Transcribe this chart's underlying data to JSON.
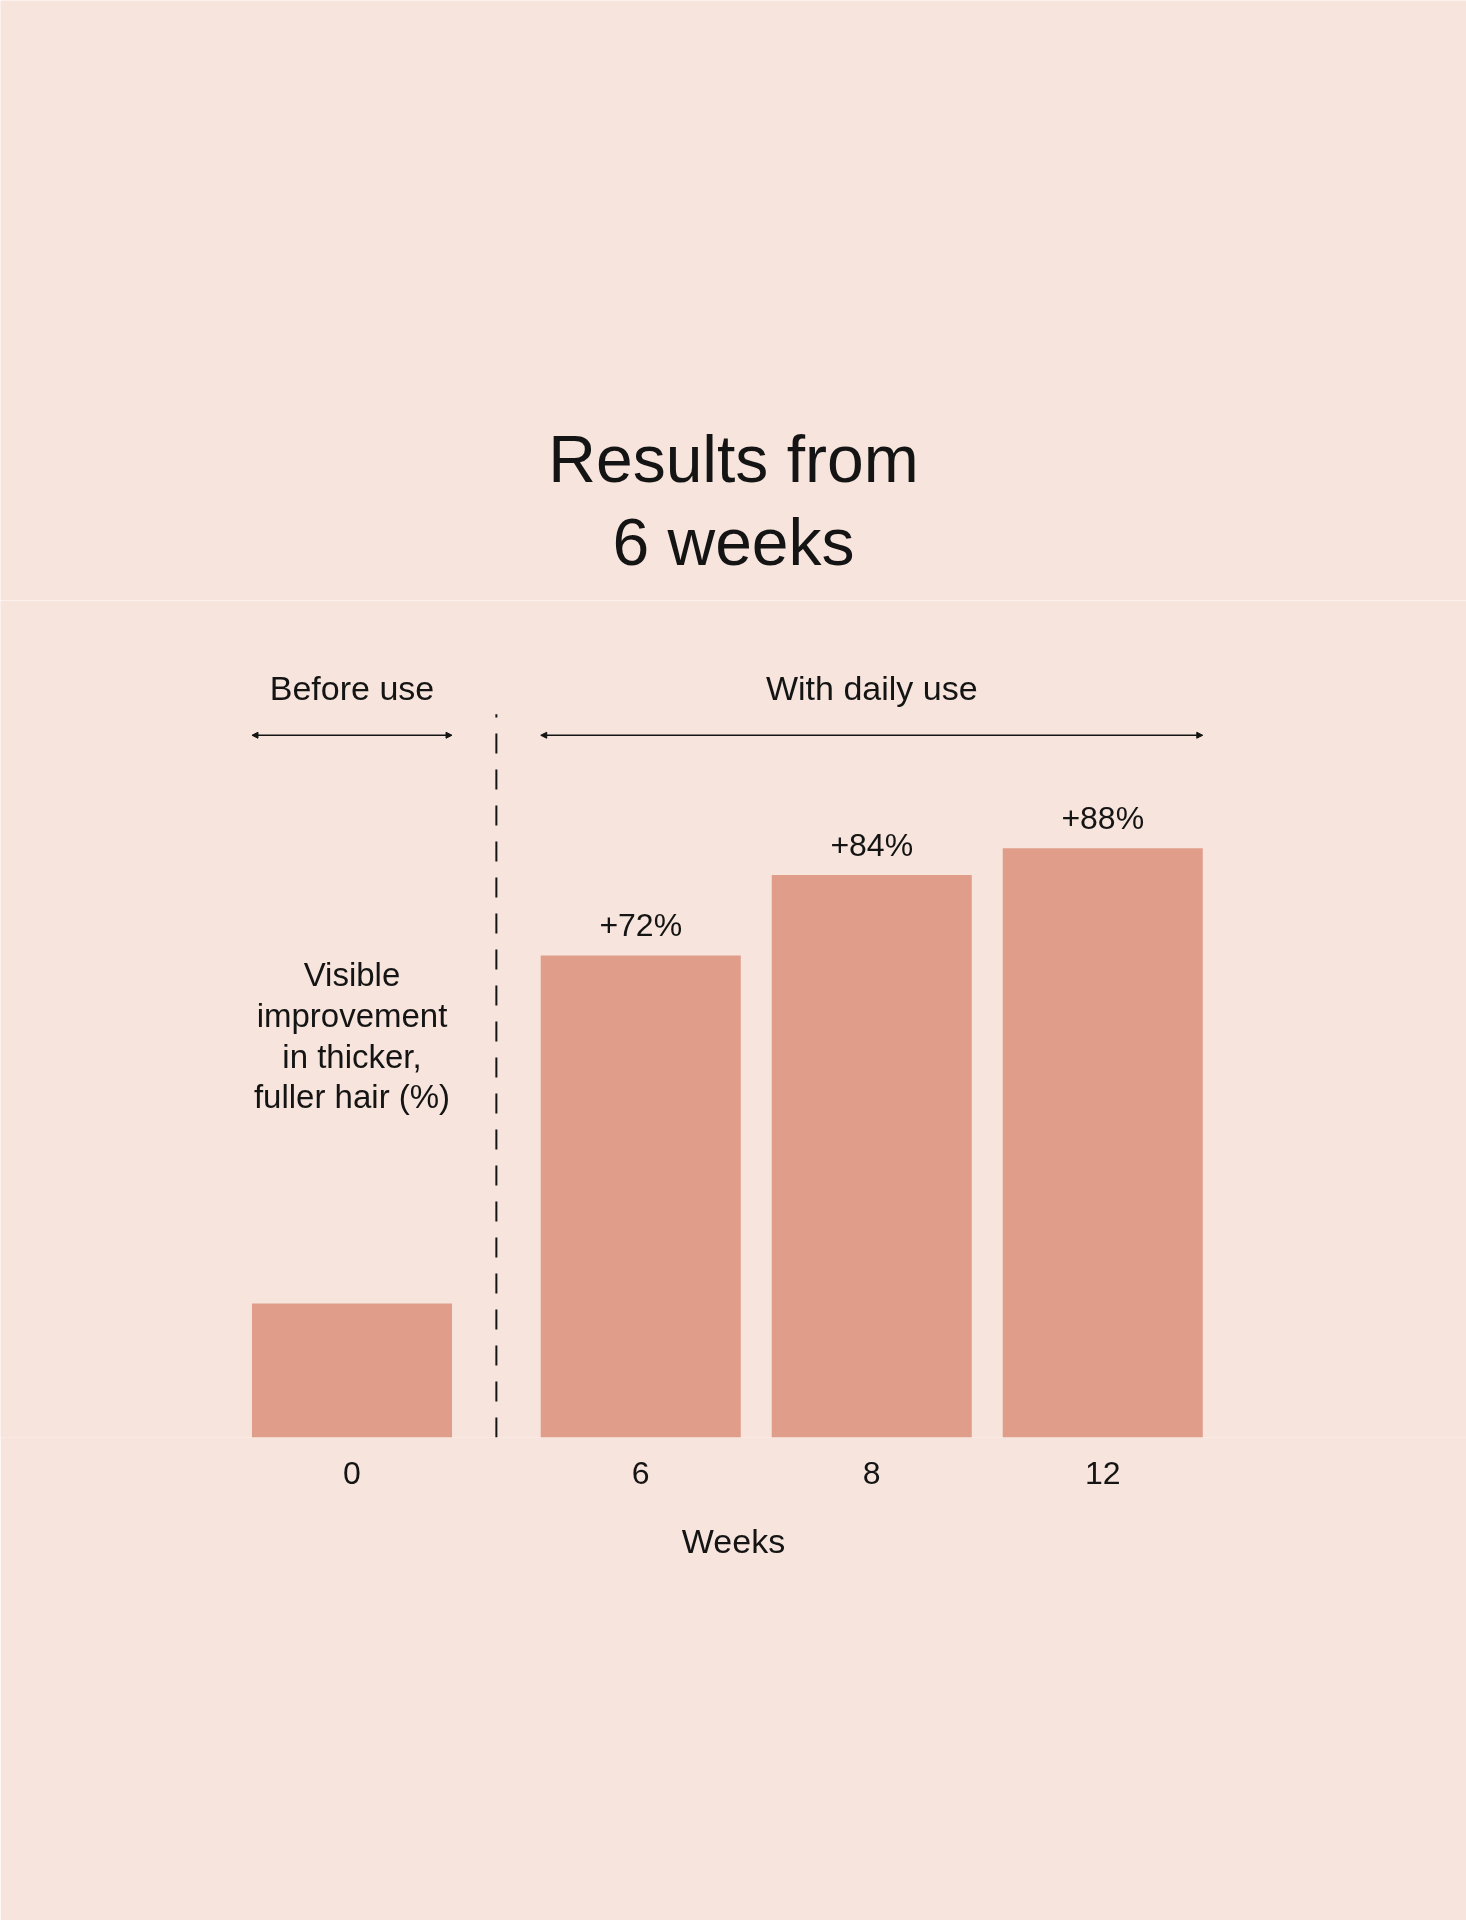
{
  "chart_data": {
    "type": "bar",
    "title": "Results from\n6 weeks",
    "xlabel": "Weeks",
    "ylabel": "Visible\nimprovement\nin thicker,\nfuller hair (%)",
    "categories": [
      "0",
      "6",
      "8",
      "12"
    ],
    "values": [
      20,
      72,
      84,
      88
    ],
    "value_labels": [
      null,
      "+72%",
      "+84%",
      "+88%"
    ],
    "color": "#e09d8a",
    "ylim": [
      0,
      125
    ],
    "tick_labels": "x",
    "annotations": [
      "Before use",
      "With daily use"
    ]
  }
}
